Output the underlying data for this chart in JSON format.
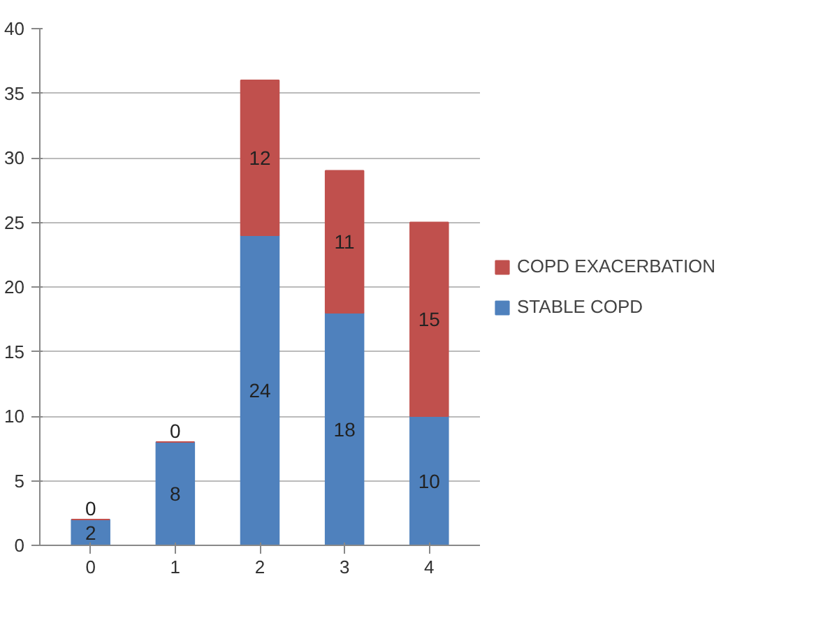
{
  "chart_data": {
    "type": "bar",
    "stacked": true,
    "categories": [
      "0",
      "1",
      "2",
      "3",
      "4"
    ],
    "series": [
      {
        "name": "STABLE COPD",
        "color": "#4f81bd",
        "values": [
          2,
          8,
          24,
          18,
          10
        ]
      },
      {
        "name": "COPD EXACERBATION",
        "color": "#c0504d",
        "values": [
          0,
          0,
          12,
          11,
          15
        ]
      }
    ],
    "ylim": [
      0,
      40
    ],
    "yticks": [
      0,
      5,
      10,
      15,
      20,
      25,
      30,
      35,
      40
    ],
    "grid": "y",
    "legend": "right",
    "data_labels": true
  }
}
